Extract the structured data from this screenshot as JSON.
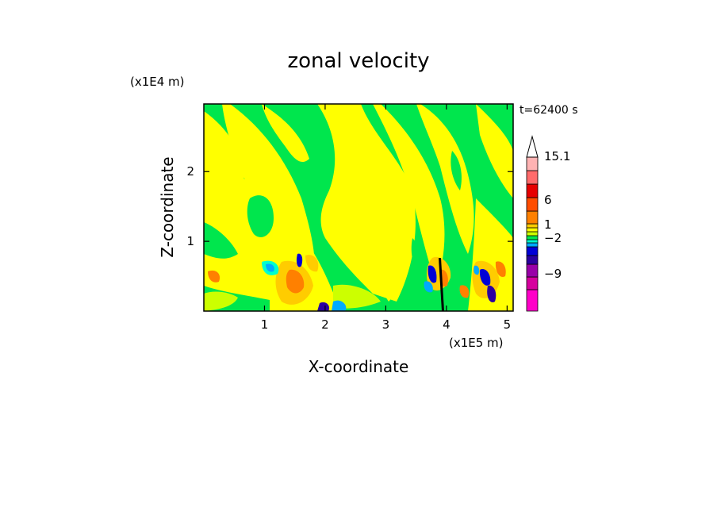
{
  "chart_data": {
    "type": "heatmap",
    "title": "zonal velocity",
    "xlabel": "X-coordinate",
    "ylabel": "Z-coordinate",
    "x_scale_label": "(x1E5 m)",
    "y_scale_label": "(x1E4 m)",
    "time_label": "t=62400 s",
    "xlim": [
      0,
      5.1
    ],
    "ylim": [
      0,
      2.97
    ],
    "x_ticks": [
      {
        "value": 1,
        "label": "1"
      },
      {
        "value": 2,
        "label": "2"
      },
      {
        "value": 3,
        "label": "3"
      },
      {
        "value": 4,
        "label": "4"
      },
      {
        "value": 5,
        "label": "5"
      }
    ],
    "y_ticks": [
      {
        "value": 1,
        "label": "1"
      },
      {
        "value": 2,
        "label": "2"
      }
    ],
    "grid": false,
    "colorbar": {
      "position": "right",
      "levels": [
        {
          "color": "#ff00c8"
        },
        {
          "color": "#d6009e"
        },
        {
          "color": "#9900a8"
        },
        {
          "color": "#2a00a0"
        },
        {
          "color": "#0000d6"
        },
        {
          "color": "#00aaff"
        },
        {
          "color": "#00ffcc"
        },
        {
          "color": "#00e64d"
        },
        {
          "color": "#ccff00"
        },
        {
          "color": "#ffff00"
        },
        {
          "color": "#ffcc00"
        },
        {
          "color": "#ff8000"
        },
        {
          "color": "#ff4d00"
        },
        {
          "color": "#e60000"
        },
        {
          "color": "#ff6b6b"
        },
        {
          "color": "#ffb3b3"
        }
      ],
      "labels": [
        {
          "text": "15.1",
          "value": 15.1
        },
        {
          "text": "6",
          "value": 6
        },
        {
          "text": "1",
          "value": 1
        },
        {
          "text": "−2",
          "value": -2
        },
        {
          "text": "−9",
          "value": -9
        }
      ],
      "extend_top": true
    }
  }
}
